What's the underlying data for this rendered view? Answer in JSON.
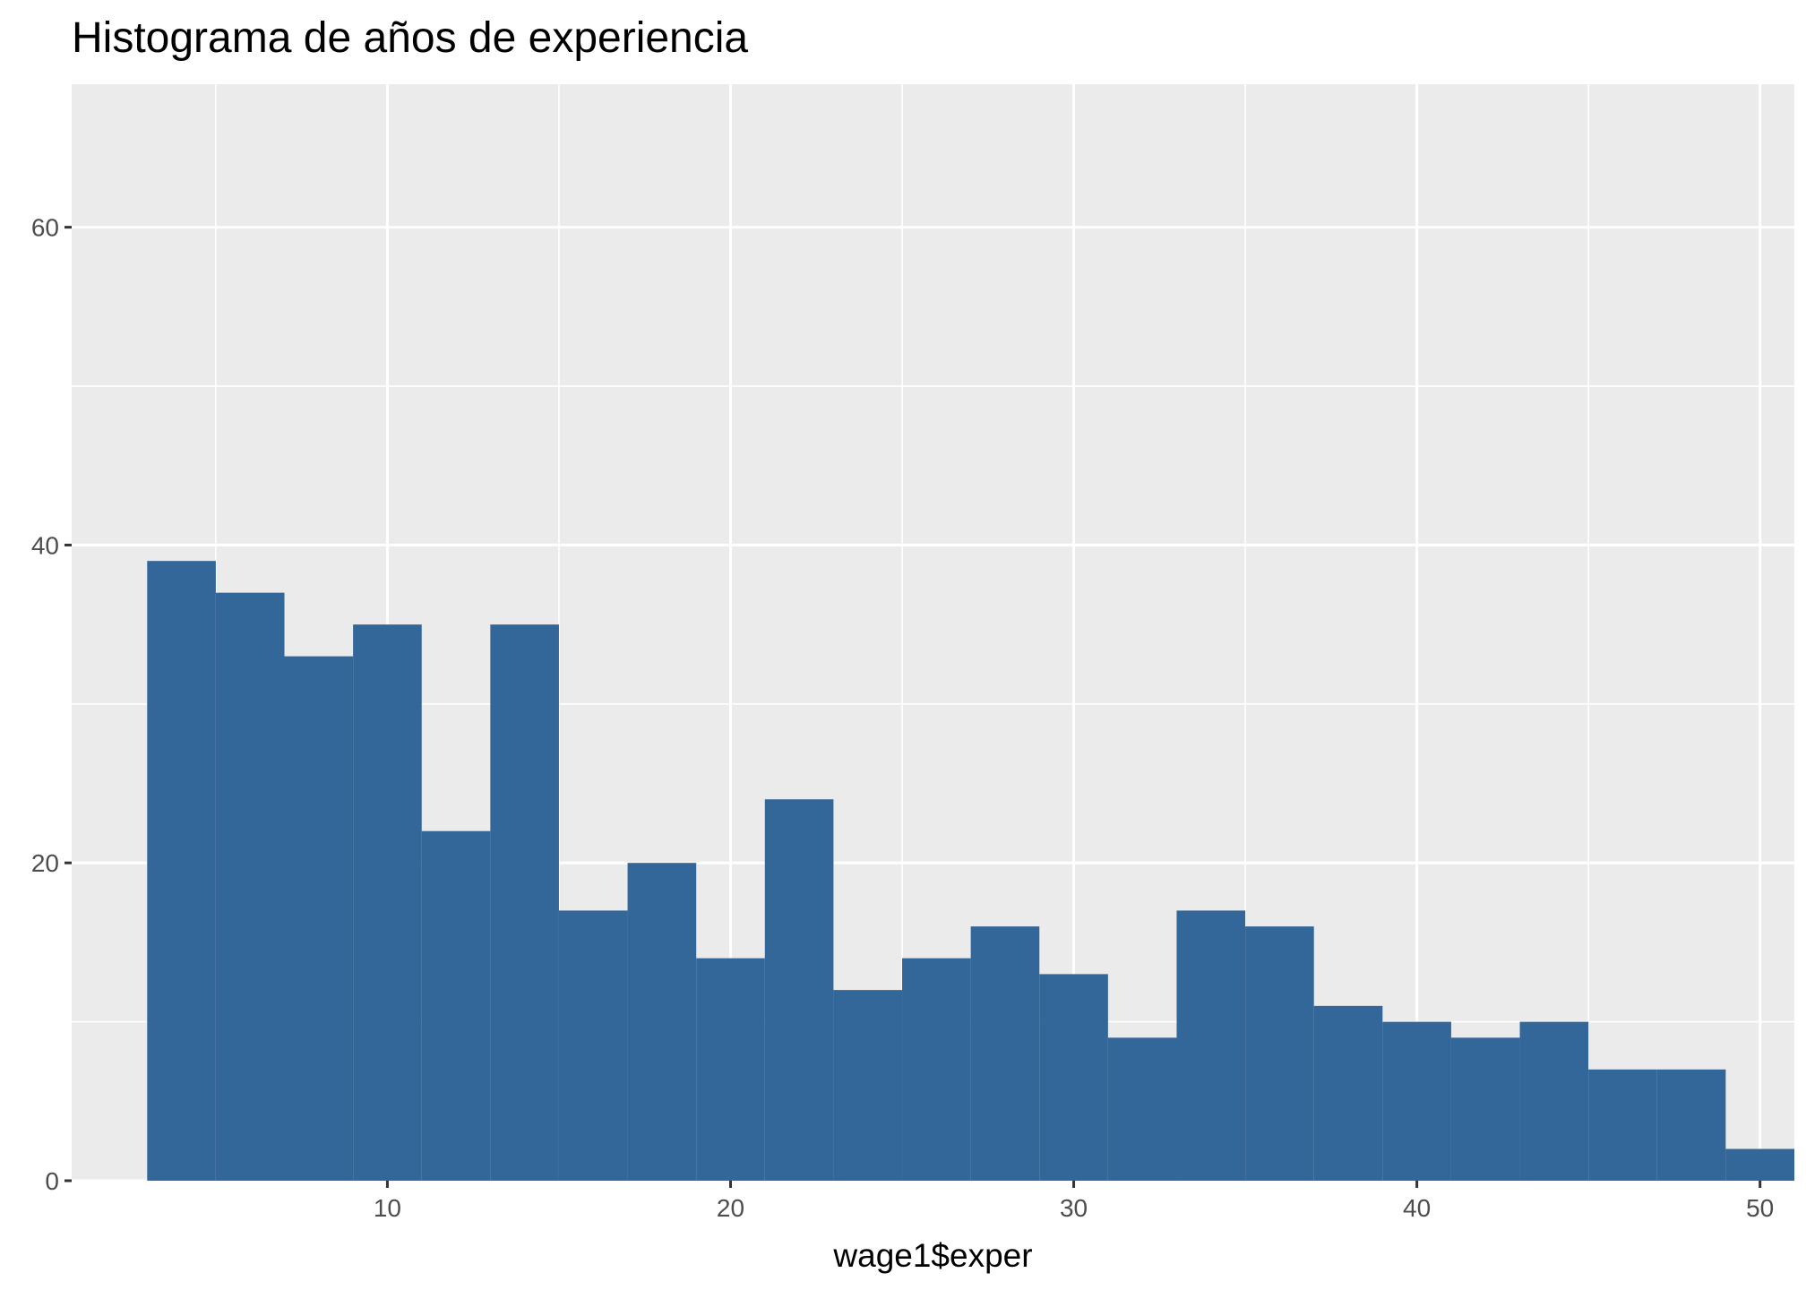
{
  "chart_data": {
    "type": "histogram",
    "title": "Histograma de años de experiencia",
    "xlabel": "wage1$exper",
    "ylabel": "",
    "xlim": [
      0.8,
      51
    ],
    "ylim": [
      0,
      69
    ],
    "x_ticks": [
      10,
      20,
      30,
      40,
      50
    ],
    "y_ticks": [
      0,
      20,
      40,
      60
    ],
    "grid": true,
    "background": "#ebebeb",
    "bar_color": "#336699",
    "bins": [
      {
        "x0": 3,
        "x1": 5,
        "count": 39
      },
      {
        "x0": 5,
        "x1": 7,
        "count": 37
      },
      {
        "x0": 7,
        "x1": 9,
        "count": 33
      },
      {
        "x0": 9,
        "x1": 11,
        "count": 35
      },
      {
        "x0": 11,
        "x1": 13,
        "count": 22
      },
      {
        "x0": 13,
        "x1": 15,
        "count": 35
      },
      {
        "x0": 15,
        "x1": 17,
        "count": 17
      },
      {
        "x0": 17,
        "x1": 19,
        "count": 20
      },
      {
        "x0": 19,
        "x1": 21,
        "count": 14
      },
      {
        "x0": 21,
        "x1": 23,
        "count": 24
      },
      {
        "x0": 23,
        "x1": 25,
        "count": 12
      },
      {
        "x0": 25,
        "x1": 27,
        "count": 14
      },
      {
        "x0": 27,
        "x1": 29,
        "count": 16
      },
      {
        "x0": 29,
        "x1": 31,
        "count": 13
      },
      {
        "x0": 31,
        "x1": 33,
        "count": 9
      },
      {
        "x0": 33,
        "x1": 35,
        "count": 17
      },
      {
        "x0": 35,
        "x1": 37,
        "count": 16
      },
      {
        "x0": 37,
        "x1": 39,
        "count": 11
      },
      {
        "x0": 39,
        "x1": 41,
        "count": 10
      },
      {
        "x0": 41,
        "x1": 43,
        "count": 9
      },
      {
        "x0": 43,
        "x1": 45,
        "count": 10
      },
      {
        "x0": 45,
        "x1": 47,
        "count": 7
      },
      {
        "x0": 47,
        "x1": 49,
        "count": 7
      },
      {
        "x0": 49,
        "x1": 51,
        "count": 2
      }
    ]
  }
}
